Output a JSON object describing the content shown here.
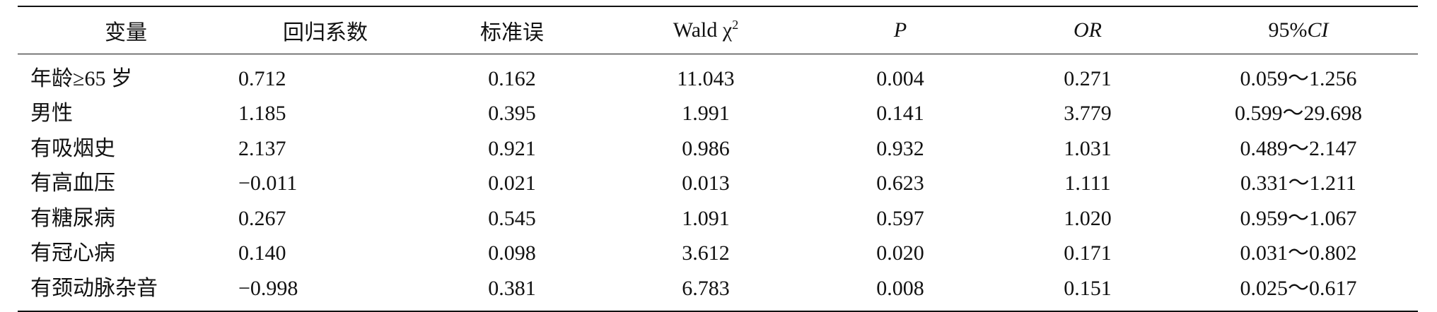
{
  "table": {
    "headers": {
      "variable": "变量",
      "coefficient": "回归系数",
      "std_error": "标准误",
      "wald_prefix": "Wald χ",
      "wald_sup": "2",
      "p": "P",
      "or": "OR",
      "ci_prefix": "95%",
      "ci_italic": "CI"
    },
    "rows": [
      {
        "variable": "年龄≥65 岁",
        "coefficient": "0.712",
        "std_error": "0.162",
        "wald": "11.043",
        "p": "0.004",
        "or": "0.271",
        "ci": "0.059～1.256"
      },
      {
        "variable": "男性",
        "coefficient": "1.185",
        "std_error": "0.395",
        "wald": "1.991",
        "p": "0.141",
        "or": "3.779",
        "ci": "0.599～29.698"
      },
      {
        "variable": "有吸烟史",
        "coefficient": "2.137",
        "std_error": "0.921",
        "wald": "0.986",
        "p": "0.932",
        "or": "1.031",
        "ci": "0.489～2.147"
      },
      {
        "variable": "有高血压",
        "coefficient": "−0.011",
        "std_error": "0.021",
        "wald": "0.013",
        "p": "0.623",
        "or": "1.111",
        "ci": "0.331～1.211"
      },
      {
        "variable": "有糖尿病",
        "coefficient": "0.267",
        "std_error": "0.545",
        "wald": "1.091",
        "p": "0.597",
        "or": "1.020",
        "ci": "0.959～1.067"
      },
      {
        "variable": "有冠心病",
        "coefficient": "0.140",
        "std_error": "0.098",
        "wald": "3.612",
        "p": "0.020",
        "or": "0.171",
        "ci": "0.031～0.802"
      },
      {
        "variable": "有颈动脉杂音",
        "coefficient": "−0.998",
        "std_error": "0.381",
        "wald": "6.783",
        "p": "0.008",
        "or": "0.151",
        "ci": "0.025～0.617"
      }
    ]
  }
}
